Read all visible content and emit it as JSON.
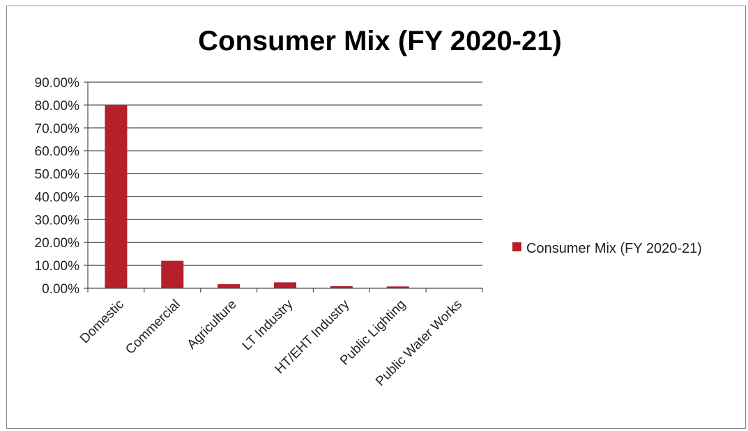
{
  "chart_data": {
    "type": "bar",
    "title": "Consumer Mix (FY 2020-21)",
    "categories": [
      "Domestic",
      "Commercial",
      "Agriculture",
      "LT Industry",
      "HT/EHT Industry",
      "Public Lighting",
      "Public Water Works"
    ],
    "series": [
      {
        "name": "Consumer Mix (FY 2020-21)",
        "values": [
          80.0,
          12.0,
          1.8,
          2.6,
          0.9,
          0.8,
          0.1
        ],
        "color": "#b5202a"
      }
    ],
    "ylim": [
      0,
      90
    ],
    "yticks": [
      "0.00%",
      "10.00%",
      "20.00%",
      "30.00%",
      "40.00%",
      "50.00%",
      "60.00%",
      "70.00%",
      "80.00%",
      "90.00%"
    ],
    "grid": true,
    "legend": "right"
  }
}
